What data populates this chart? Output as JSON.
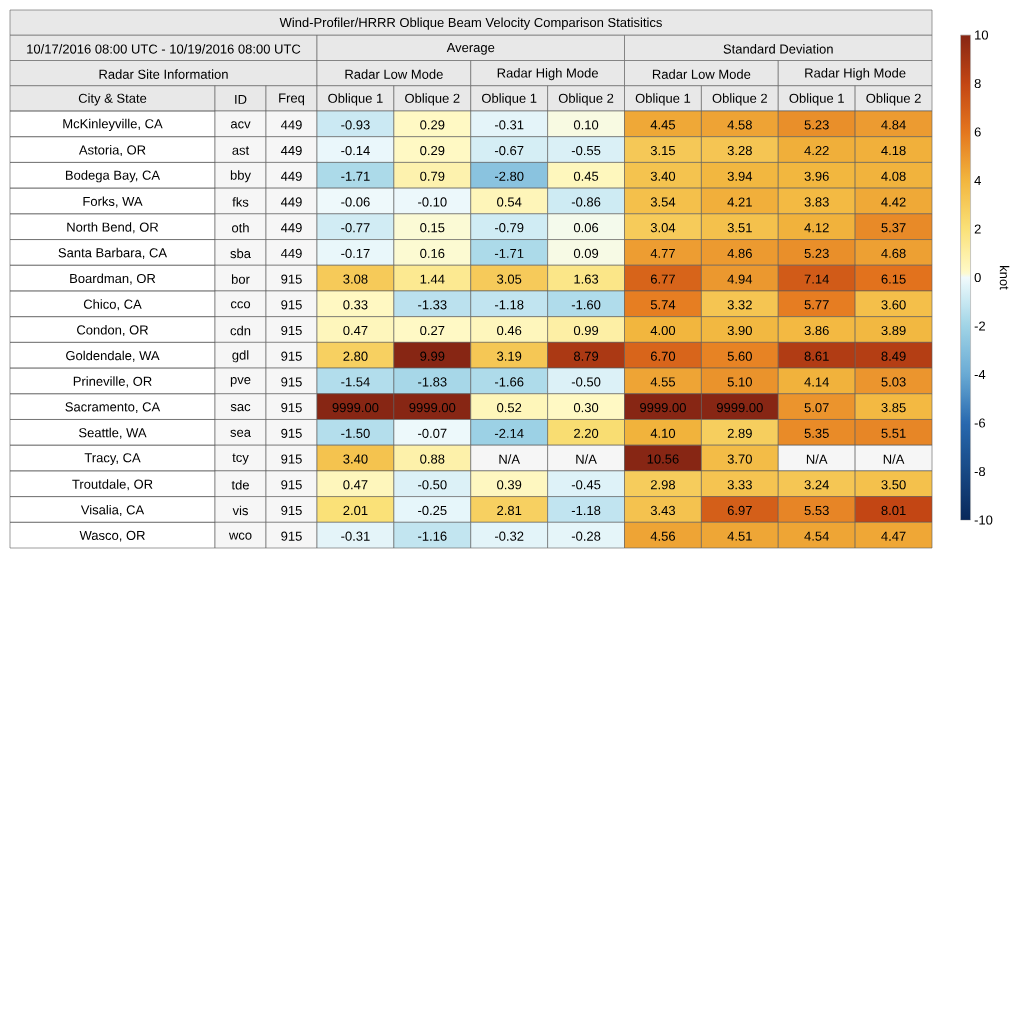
{
  "chart_data": {
    "type": "heatmap",
    "title": "Wind-Profiler/HRRR Oblique Beam Velocity Comparison Statisitics",
    "subtitle": "10/17/2016 08:00 UTC - 10/19/2016 08:00 UTC",
    "ylabel": "City & State",
    "annotations": [
      "Radar Site Information",
      "Average",
      "Standard Deviation",
      "Radar Low Mode",
      "Radar High Mode",
      "Radar Low Mode",
      "Radar High Mode"
    ],
    "categories": [
      "ID",
      "Freq",
      "Oblique 1",
      "Oblique 2",
      "Oblique 1",
      "Oblique 2",
      "Oblique 1",
      "Oblique 2",
      "Oblique 1",
      "Oblique 2"
    ],
    "y_categories": [
      "McKinleyville, CA",
      "Astoria, OR",
      "Bodega Bay, CA",
      "Forks, WA",
      "North Bend, OR",
      "Santa Barbara, CA",
      "Boardman, OR",
      "Chico, CA",
      "Condon, OR",
      "Goldendale, WA",
      "Prineville, OR",
      "Sacramento, CA",
      "Seattle, WA",
      "Tracy, CA",
      "Troutdale, OR",
      "Visalia, CA",
      "Wasco, OR"
    ],
    "cells": [
      [
        null,
        null,
        -0.93,
        0.29,
        -0.31,
        0.1,
        4.45,
        4.58,
        5.23,
        4.84
      ],
      [
        null,
        null,
        -0.14,
        0.29,
        -0.67,
        -0.55,
        3.15,
        3.28,
        4.22,
        4.18
      ],
      [
        null,
        null,
        -1.71,
        0.79,
        -2.8,
        0.45,
        3.4,
        3.94,
        3.96,
        4.08
      ],
      [
        null,
        null,
        -0.06,
        -0.1,
        0.54,
        -0.86,
        3.54,
        4.21,
        3.83,
        4.42
      ],
      [
        null,
        null,
        -0.77,
        0.15,
        -0.79,
        0.06,
        3.04,
        3.51,
        4.12,
        5.37
      ],
      [
        null,
        null,
        -0.17,
        0.16,
        -1.71,
        0.09,
        4.77,
        4.86,
        5.23,
        4.68
      ],
      [
        null,
        null,
        3.08,
        1.44,
        3.05,
        1.63,
        6.77,
        4.94,
        7.14,
        6.15
      ],
      [
        null,
        null,
        0.33,
        -1.33,
        -1.18,
        -1.6,
        5.74,
        3.32,
        5.77,
        3.6
      ],
      [
        null,
        null,
        0.47,
        0.27,
        0.46,
        0.99,
        4.0,
        3.9,
        3.86,
        3.89
      ],
      [
        null,
        null,
        2.8,
        9.99,
        3.19,
        8.79,
        6.7,
        5.6,
        8.61,
        8.49
      ],
      [
        null,
        null,
        -1.54,
        -1.83,
        -1.66,
        -0.5,
        4.55,
        5.1,
        4.14,
        5.03
      ],
      [
        null,
        null,
        9999.0,
        9999.0,
        0.52,
        0.3,
        9999.0,
        9999.0,
        5.07,
        3.85
      ],
      [
        null,
        null,
        -1.5,
        -0.07,
        -2.14,
        2.2,
        4.1,
        2.89,
        5.35,
        5.51
      ],
      [
        null,
        null,
        3.4,
        0.88,
        null,
        null,
        10.56,
        3.7,
        null,
        null
      ],
      [
        null,
        null,
        0.47,
        -0.5,
        0.39,
        -0.45,
        2.98,
        3.33,
        3.24,
        3.5
      ],
      [
        null,
        null,
        2.01,
        -0.25,
        2.81,
        -1.18,
        3.43,
        6.97,
        5.53,
        8.01
      ],
      [
        null,
        null,
        -0.31,
        -1.16,
        -0.32,
        -0.28,
        4.56,
        4.51,
        4.54,
        4.47
      ]
    ],
    "cell_labels": [
      [
        "acv",
        "449",
        "-0.93",
        "0.29",
        "-0.31",
        "0.10",
        "4.45",
        "4.58",
        "5.23",
        "4.84"
      ],
      [
        "ast",
        "449",
        "-0.14",
        "0.29",
        "-0.67",
        "-0.55",
        "3.15",
        "3.28",
        "4.22",
        "4.18"
      ],
      [
        "bby",
        "449",
        "-1.71",
        "0.79",
        "-2.80",
        "0.45",
        "3.40",
        "3.94",
        "3.96",
        "4.08"
      ],
      [
        "fks",
        "449",
        "-0.06",
        "-0.10",
        "0.54",
        "-0.86",
        "3.54",
        "4.21",
        "3.83",
        "4.42"
      ],
      [
        "oth",
        "449",
        "-0.77",
        "0.15",
        "-0.79",
        "0.06",
        "3.04",
        "3.51",
        "4.12",
        "5.37"
      ],
      [
        "sba",
        "449",
        "-0.17",
        "0.16",
        "-1.71",
        "0.09",
        "4.77",
        "4.86",
        "5.23",
        "4.68"
      ],
      [
        "bor",
        "915",
        "3.08",
        "1.44",
        "3.05",
        "1.63",
        "6.77",
        "4.94",
        "7.14",
        "6.15"
      ],
      [
        "cco",
        "915",
        "0.33",
        "-1.33",
        "-1.18",
        "-1.60",
        "5.74",
        "3.32",
        "5.77",
        "3.60"
      ],
      [
        "cdn",
        "915",
        "0.47",
        "0.27",
        "0.46",
        "0.99",
        "4.00",
        "3.90",
        "3.86",
        "3.89"
      ],
      [
        "gdl",
        "915",
        "2.80",
        "9.99",
        "3.19",
        "8.79",
        "6.70",
        "5.60",
        "8.61",
        "8.49"
      ],
      [
        "pve",
        "915",
        "-1.54",
        "-1.83",
        "-1.66",
        "-0.50",
        "4.55",
        "5.10",
        "4.14",
        "5.03"
      ],
      [
        "sac",
        "915",
        "9999.00",
        "9999.00",
        "0.52",
        "0.30",
        "9999.00",
        "9999.00",
        "5.07",
        "3.85"
      ],
      [
        "sea",
        "915",
        "-1.50",
        "-0.07",
        "-2.14",
        "2.20",
        "4.10",
        "2.89",
        "5.35",
        "5.51"
      ],
      [
        "tcy",
        "915",
        "3.40",
        "0.88",
        "N/A",
        "N/A",
        "10.56",
        "3.70",
        "N/A",
        "N/A"
      ],
      [
        "tde",
        "915",
        "0.47",
        "-0.50",
        "0.39",
        "-0.45",
        "2.98",
        "3.33",
        "3.24",
        "3.50"
      ],
      [
        "vis",
        "915",
        "2.01",
        "-0.25",
        "2.81",
        "-1.18",
        "3.43",
        "6.97",
        "5.53",
        "8.01"
      ],
      [
        "wco",
        "915",
        "-0.31",
        "-1.16",
        "-0.32",
        "-0.28",
        "4.56",
        "4.51",
        "4.54",
        "4.47"
      ]
    ],
    "clim": [
      -10,
      10
    ],
    "cticks": [
      -10,
      -8,
      -6,
      -4,
      -2,
      0,
      2,
      4,
      6,
      8,
      10
    ],
    "clabel": "knot"
  }
}
